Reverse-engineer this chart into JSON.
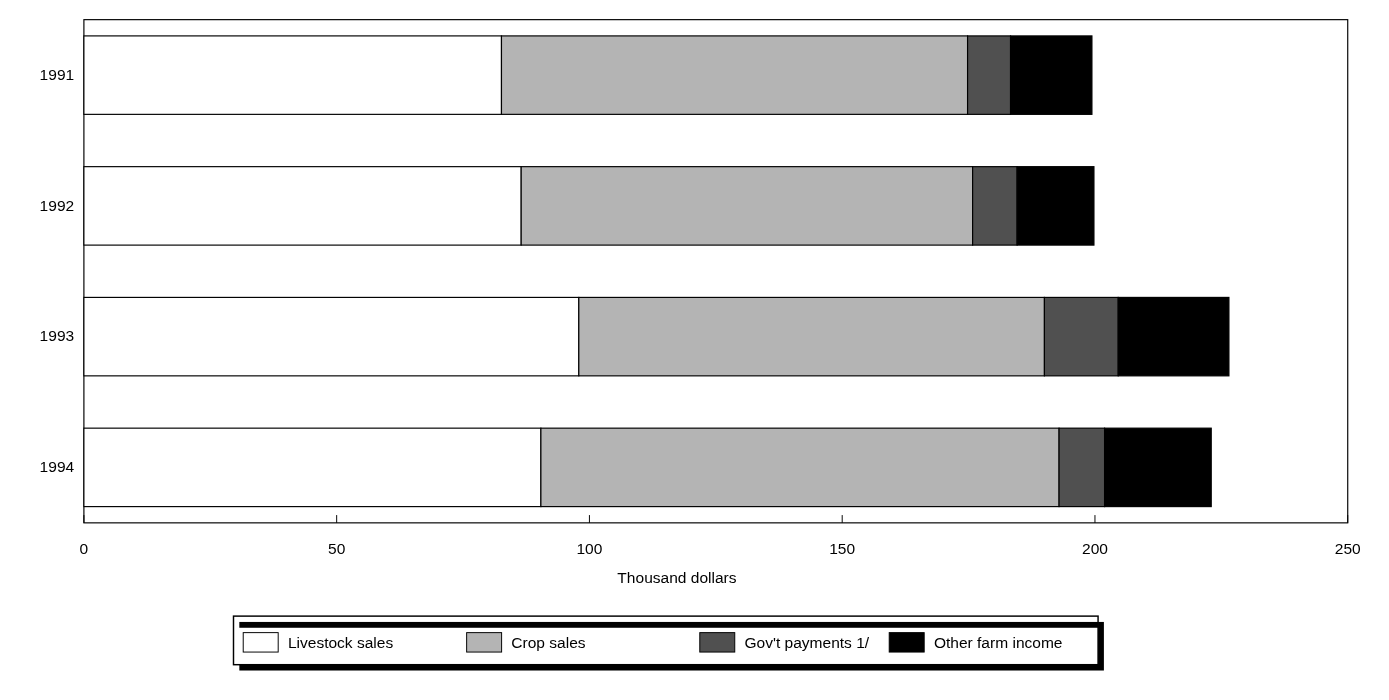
{
  "chart_data": {
    "type": "bar",
    "orientation": "horizontal",
    "stacked": true,
    "xlabel": "Thousand dollars",
    "categories": [
      "1991",
      "1992",
      "1993",
      "1994"
    ],
    "series": [
      {
        "name": "Livestock sales",
        "color": "#ffffff",
        "values": [
          82.6,
          86.5,
          97.9,
          90.4
        ]
      },
      {
        "name": "Crop sales",
        "color": "#b4b4b4",
        "values": [
          92.2,
          89.3,
          92.1,
          102.5
        ]
      },
      {
        "name": "Gov't payments 1/",
        "color": "#505050",
        "values": [
          8.5,
          8.8,
          14.6,
          9
        ]
      },
      {
        "name": "Other farm income",
        "color": "#000000",
        "values": [
          16.1,
          15.2,
          21.9,
          21.1
        ]
      }
    ],
    "xlim": [
      0,
      250
    ],
    "xticks": [
      0,
      50,
      100,
      150,
      200,
      250
    ],
    "grid": false,
    "legend": "bottom"
  }
}
